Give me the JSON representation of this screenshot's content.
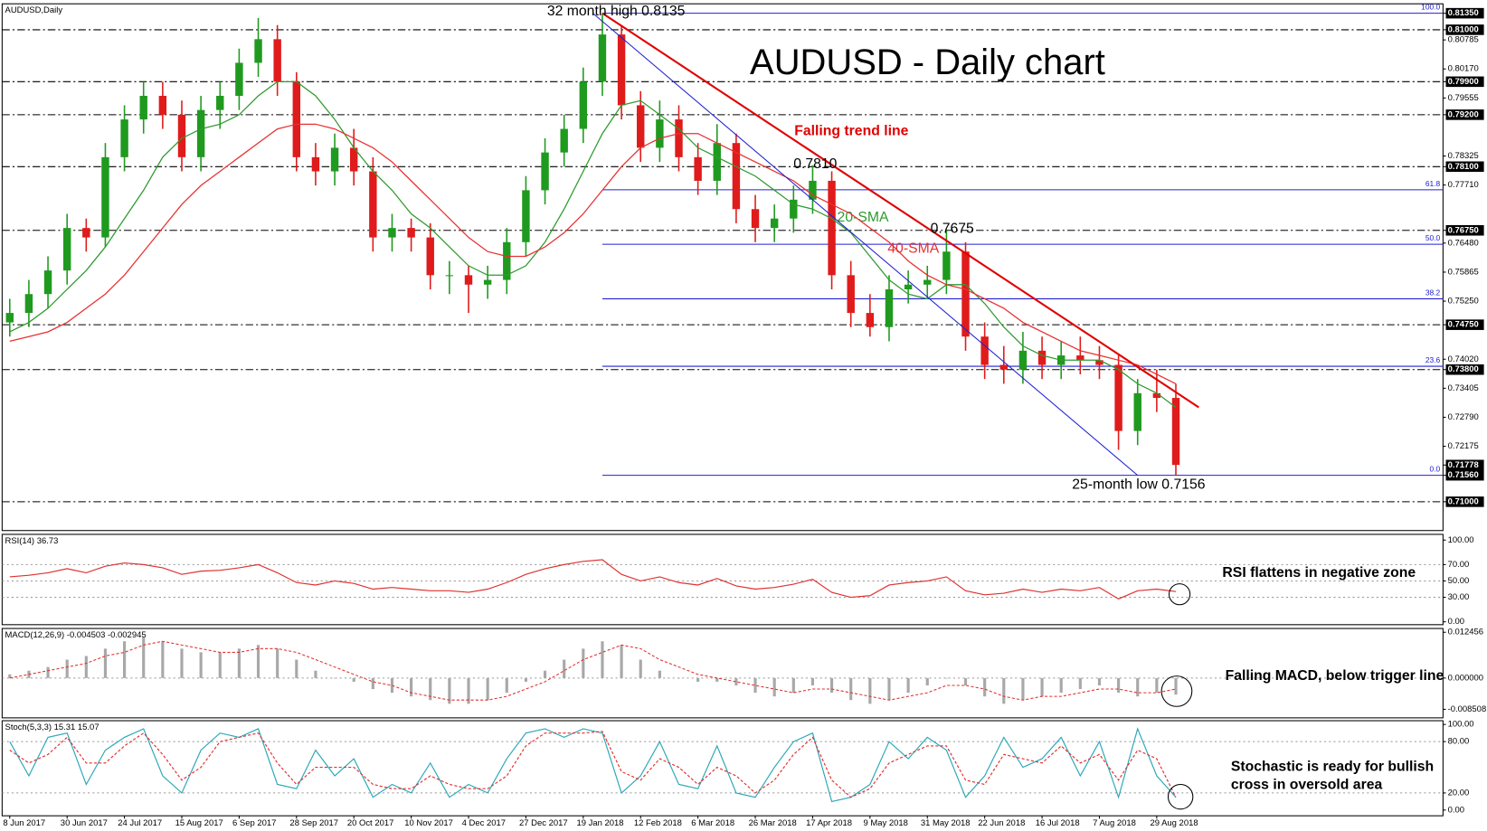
{
  "chart_data": [
    {
      "type": "candlestick",
      "title": "AUDUSD - Daily chart",
      "label": "AUDUSD,Daily",
      "categories": [
        "8 Jun 2017",
        null,
        null,
        "30 Jun 2017",
        null,
        null,
        "24 Jul 2017",
        null,
        null,
        "15 Aug 2017",
        null,
        null,
        "6 Sep 2017",
        null,
        null,
        "28 Sep 2017",
        null,
        null,
        "20 Oct 2017",
        null,
        null,
        "10 Nov 2017",
        null,
        null,
        "4 Dec 2017",
        null,
        null,
        "27 Dec 2017",
        null,
        null,
        "19 Jan 2018",
        null,
        null,
        "12 Feb 2018",
        null,
        null,
        "6 Mar 2018",
        null,
        null,
        "26 Mar 2018",
        null,
        null,
        "17 Apr 2018",
        null,
        null,
        "9 May 2018",
        null,
        null,
        "31 May 2018",
        null,
        null,
        "22 Jun 2018",
        null,
        null,
        "16 Jul 2018",
        null,
        null,
        "7 Aug 2018",
        null,
        null,
        "29 Aug 2018",
        null
      ],
      "open": [
        0.748,
        0.75,
        0.754,
        0.759,
        0.768,
        0.766,
        0.783,
        0.791,
        0.796,
        0.792,
        0.783,
        0.793,
        0.796,
        0.803,
        0.808,
        0.799,
        0.783,
        0.78,
        0.785,
        0.78,
        0.766,
        0.768,
        0.766,
        0.758,
        0.758,
        0.756,
        0.757,
        0.765,
        0.776,
        0.784,
        0.789,
        0.799,
        0.809,
        0.794,
        0.785,
        0.791,
        0.783,
        0.778,
        0.786,
        0.772,
        0.768,
        0.77,
        0.774,
        0.778,
        0.758,
        0.75,
        0.747,
        0.755,
        0.756,
        0.757,
        0.763,
        0.745,
        0.739,
        0.738,
        0.742,
        0.739,
        0.741,
        0.74,
        0.739,
        0.725,
        0.733,
        0.732
      ],
      "high": [
        0.753,
        0.757,
        0.762,
        0.771,
        0.77,
        0.786,
        0.794,
        0.799,
        0.799,
        0.795,
        0.796,
        0.799,
        0.806,
        0.8125,
        0.811,
        0.801,
        0.786,
        0.788,
        0.789,
        0.783,
        0.771,
        0.77,
        0.769,
        0.761,
        0.76,
        0.76,
        0.768,
        0.779,
        0.787,
        0.792,
        0.802,
        0.8135,
        0.811,
        0.797,
        0.795,
        0.794,
        0.786,
        0.79,
        0.788,
        0.775,
        0.773,
        0.777,
        0.7813,
        0.78,
        0.761,
        0.754,
        0.758,
        0.759,
        0.76,
        0.7677,
        0.765,
        0.748,
        0.743,
        0.746,
        0.745,
        0.744,
        0.745,
        0.743,
        0.741,
        0.736,
        0.738,
        0.735
      ],
      "low": [
        0.745,
        0.747,
        0.751,
        0.756,
        0.763,
        0.764,
        0.78,
        0.788,
        0.789,
        0.78,
        0.78,
        0.789,
        0.793,
        0.8,
        0.796,
        0.78,
        0.777,
        0.777,
        0.777,
        0.763,
        0.763,
        0.763,
        0.755,
        0.754,
        0.75,
        0.753,
        0.754,
        0.762,
        0.773,
        0.781,
        0.786,
        0.796,
        0.791,
        0.782,
        0.782,
        0.78,
        0.775,
        0.775,
        0.769,
        0.765,
        0.765,
        0.767,
        0.771,
        0.755,
        0.747,
        0.745,
        0.744,
        0.752,
        0.753,
        0.754,
        0.742,
        0.736,
        0.735,
        0.735,
        0.736,
        0.736,
        0.737,
        0.736,
        0.721,
        0.722,
        0.729,
        0.7156
      ],
      "close": [
        0.75,
        0.754,
        0.759,
        0.768,
        0.766,
        0.783,
        0.791,
        0.796,
        0.792,
        0.783,
        0.793,
        0.796,
        0.803,
        0.808,
        0.799,
        0.783,
        0.78,
        0.785,
        0.78,
        0.766,
        0.768,
        0.766,
        0.758,
        0.758,
        0.756,
        0.757,
        0.765,
        0.776,
        0.784,
        0.789,
        0.799,
        0.809,
        0.794,
        0.785,
        0.791,
        0.783,
        0.778,
        0.786,
        0.772,
        0.768,
        0.77,
        0.774,
        0.778,
        0.758,
        0.75,
        0.747,
        0.755,
        0.756,
        0.757,
        0.763,
        0.745,
        0.739,
        0.738,
        0.742,
        0.739,
        0.741,
        0.74,
        0.739,
        0.725,
        0.733,
        0.732,
        0.7178
      ],
      "up_color": "#1f9a1f",
      "down_color": "#e01b1b",
      "series": [
        {
          "name": "20-SMA",
          "color": "#2e9a2e",
          "values": [
            0.746,
            0.748,
            0.751,
            0.755,
            0.759,
            0.764,
            0.77,
            0.776,
            0.783,
            0.787,
            0.789,
            0.79,
            0.792,
            0.796,
            0.799,
            0.799,
            0.796,
            0.791,
            0.785,
            0.78,
            0.776,
            0.771,
            0.768,
            0.764,
            0.76,
            0.758,
            0.758,
            0.76,
            0.765,
            0.772,
            0.78,
            0.788,
            0.794,
            0.795,
            0.792,
            0.789,
            0.785,
            0.783,
            0.781,
            0.779,
            0.776,
            0.773,
            0.772,
            0.77,
            0.767,
            0.762,
            0.757,
            0.754,
            0.753,
            0.756,
            0.756,
            0.752,
            0.747,
            0.743,
            0.741,
            0.74,
            0.74,
            0.74,
            0.738,
            0.735,
            0.733,
            0.73
          ]
        },
        {
          "name": "40-SMA",
          "color": "#e83030",
          "values": [
            0.744,
            0.745,
            0.746,
            0.748,
            0.751,
            0.754,
            0.758,
            0.763,
            0.768,
            0.773,
            0.777,
            0.78,
            0.783,
            0.786,
            0.789,
            0.79,
            0.79,
            0.789,
            0.787,
            0.785,
            0.782,
            0.778,
            0.774,
            0.77,
            0.766,
            0.763,
            0.762,
            0.762,
            0.764,
            0.767,
            0.771,
            0.776,
            0.781,
            0.785,
            0.787,
            0.788,
            0.788,
            0.786,
            0.784,
            0.782,
            0.78,
            0.778,
            0.775,
            0.773,
            0.771,
            0.768,
            0.765,
            0.761,
            0.758,
            0.756,
            0.755,
            0.753,
            0.751,
            0.748,
            0.746,
            0.744,
            0.742,
            0.741,
            0.74,
            0.739,
            0.737,
            0.735
          ]
        }
      ],
      "trend_lines": [
        {
          "name": "Falling trend line",
          "color": "#e00000",
          "x": [
            31,
            62.2
          ],
          "y": [
            0.8135,
            0.73
          ]
        },
        {
          "color": "#2020d0",
          "x": [
            30.5,
            59
          ],
          "y": [
            0.8135,
            0.7156
          ]
        }
      ],
      "levels": [
        0.81,
        0.799,
        0.792,
        0.781,
        0.7675,
        0.7475,
        0.738,
        0.71
      ],
      "fibonacci": {
        "color": "#2020d0",
        "x": [
          31,
          61
        ],
        "levels": [
          {
            "value": 0.8135,
            "label": "100.0"
          },
          {
            "value": 0.7761,
            "label": "61.8"
          },
          {
            "value": 0.76455,
            "label": "50.0"
          },
          {
            "value": 0.753,
            "label": "38.2"
          },
          {
            "value": 0.7387,
            "label": "23.6"
          },
          {
            "value": 0.7156,
            "label": "0.0"
          }
        ]
      },
      "last_price": 0.71778,
      "annotations": [
        "32 month high 0.8135",
        "0.7810",
        "0.7675",
        "25-month low 0.7156"
      ],
      "ylim": [
        0.7039,
        0.8155
      ],
      "yticks": [
        {
          "value": 0.8135,
          "label": "0.81350"
        },
        {
          "value": 0.81,
          "label": "0.81000"
        },
        {
          "value": 0.80785,
          "label": "0.80785"
        },
        {
          "value": 0.8017,
          "label": "0.80170"
        },
        {
          "value": 0.799,
          "label": "0.79900"
        },
        {
          "value": 0.79555,
          "label": "0.79555"
        },
        {
          "value": 0.792,
          "label": "0.79200"
        },
        {
          "value": 0.78325,
          "label": "0.78325"
        },
        {
          "value": 0.781,
          "label": "0.78100"
        },
        {
          "value": 0.7771,
          "label": "0.77710"
        },
        {
          "value": 0.7675,
          "label": "0.76750"
        },
        {
          "value": 0.7648,
          "label": "0.76480"
        },
        {
          "value": 0.75865,
          "label": "0.75865"
        },
        {
          "value": 0.7525,
          "label": "0.75250"
        },
        {
          "value": 0.7475,
          "label": "0.74750"
        },
        {
          "value": 0.7402,
          "label": "0.74020"
        },
        {
          "value": 0.738,
          "label": "0.73800"
        },
        {
          "value": 0.73405,
          "label": "0.73405"
        },
        {
          "value": 0.7279,
          "label": "0.72790"
        },
        {
          "value": 0.72175,
          "label": "0.72175"
        },
        {
          "value": 0.71778,
          "label": "0.71778"
        },
        {
          "value": 0.7156,
          "label": "0.71560"
        },
        {
          "value": 0.71,
          "label": "0.71000"
        }
      ]
    },
    {
      "type": "line",
      "label": "RSI(14) 36.73",
      "annotation": [
        "RSI flattens in negative zone"
      ],
      "series": [
        {
          "color": "#e03030",
          "values": [
            55,
            57,
            60,
            65,
            60,
            68,
            72,
            70,
            66,
            58,
            62,
            63,
            66,
            70,
            60,
            48,
            45,
            50,
            47,
            40,
            42,
            40,
            38,
            38,
            36,
            40,
            48,
            58,
            65,
            70,
            74,
            76,
            58,
            50,
            55,
            48,
            45,
            53,
            44,
            40,
            42,
            46,
            52,
            36,
            30,
            32,
            45,
            48,
            50,
            55,
            38,
            33,
            35,
            40,
            36,
            40,
            38,
            42,
            28,
            38,
            40,
            37
          ]
        }
      ],
      "ylim": [
        -3.5,
        107
      ],
      "yticks": [
        {
          "value": 100,
          "label": "100.00"
        },
        {
          "value": 70,
          "label": "70.00"
        },
        {
          "value": 50,
          "label": "50.00"
        },
        {
          "value": 30,
          "label": "30.00"
        },
        {
          "value": 0,
          "label": "0.00"
        }
      ]
    },
    {
      "type": "macd",
      "label": "MACD(12,26,9) -0.004503 -0.002945",
      "annotation": [
        "Falling MACD, below trigger line"
      ],
      "histogram": {
        "color": "#a8a8a8",
        "values": [
          0.001,
          0.002,
          0.003,
          0.005,
          0.006,
          0.008,
          0.01,
          0.011,
          0.01,
          0.008,
          0.007,
          0.007,
          0.008,
          0.009,
          0.008,
          0.005,
          0.002,
          0.0,
          -0.001,
          -0.003,
          -0.004,
          -0.005,
          -0.006,
          -0.007,
          -0.007,
          -0.006,
          -0.004,
          -0.001,
          0.002,
          0.005,
          0.008,
          0.01,
          0.009,
          0.005,
          0.002,
          0.0,
          -0.001,
          -0.001,
          -0.002,
          -0.004,
          -0.005,
          -0.004,
          -0.002,
          -0.004,
          -0.006,
          -0.007,
          -0.006,
          -0.004,
          -0.002,
          0.0,
          -0.002,
          -0.005,
          -0.007,
          -0.006,
          -0.005,
          -0.004,
          -0.003,
          -0.002,
          -0.004,
          -0.005,
          -0.004,
          -0.0045
        ]
      },
      "signal": {
        "color": "#e03030",
        "values": [
          0.0,
          0.001,
          0.002,
          0.003,
          0.004,
          0.006,
          0.007,
          0.009,
          0.01,
          0.009,
          0.008,
          0.007,
          0.007,
          0.008,
          0.008,
          0.007,
          0.005,
          0.003,
          0.001,
          -0.001,
          -0.002,
          -0.004,
          -0.005,
          -0.006,
          -0.006,
          -0.006,
          -0.005,
          -0.003,
          -0.001,
          0.002,
          0.005,
          0.007,
          0.009,
          0.008,
          0.005,
          0.003,
          0.001,
          0.0,
          -0.001,
          -0.002,
          -0.003,
          -0.004,
          -0.003,
          -0.003,
          -0.004,
          -0.005,
          -0.006,
          -0.005,
          -0.004,
          -0.002,
          -0.002,
          -0.003,
          -0.005,
          -0.006,
          -0.005,
          -0.005,
          -0.004,
          -0.003,
          -0.003,
          -0.004,
          -0.004,
          -0.003
        ]
      },
      "ylim": [
        -0.010837,
        0.013491
      ],
      "yticks": [
        0.012456,
        {
          "value": 0,
          "label": "0.000000"
        },
        -0.008508
      ]
    },
    {
      "type": "line",
      "label": "Stoch(5,3,3) 15.31 15.07",
      "annotation": [
        "Stochastic is ready for bullish",
        "cross in oversold area"
      ],
      "series": [
        {
          "color": "#2aa7b7",
          "values": [
            80,
            40,
            85,
            90,
            30,
            70,
            85,
            95,
            40,
            20,
            70,
            90,
            85,
            95,
            30,
            25,
            70,
            40,
            60,
            15,
            30,
            20,
            55,
            15,
            30,
            20,
            60,
            90,
            95,
            85,
            95,
            90,
            20,
            40,
            80,
            30,
            25,
            75,
            20,
            15,
            50,
            80,
            90,
            10,
            15,
            30,
            80,
            60,
            85,
            70,
            15,
            40,
            85,
            50,
            60,
            85,
            40,
            80,
            15,
            95,
            40,
            15
          ]
        },
        {
          "color": "#e03030",
          "dashed": true,
          "values": [
            70,
            55,
            65,
            85,
            55,
            55,
            75,
            90,
            65,
            35,
            50,
            80,
            85,
            90,
            55,
            30,
            50,
            50,
            50,
            30,
            25,
            25,
            40,
            30,
            25,
            25,
            40,
            75,
            90,
            90,
            90,
            92,
            45,
            35,
            60,
            50,
            30,
            50,
            40,
            20,
            35,
            65,
            85,
            35,
            15,
            25,
            55,
            65,
            75,
            75,
            35,
            30,
            65,
            60,
            55,
            75,
            55,
            65,
            35,
            70,
            60,
            15
          ]
        }
      ],
      "ylim": [
        -6.7,
        104.4
      ],
      "yticks": [
        {
          "value": 100,
          "label": "100.00"
        },
        {
          "value": 80,
          "label": "80.00"
        },
        {
          "value": 20,
          "label": "20.00"
        },
        {
          "value": 0,
          "label": "0.00"
        }
      ]
    }
  ]
}
